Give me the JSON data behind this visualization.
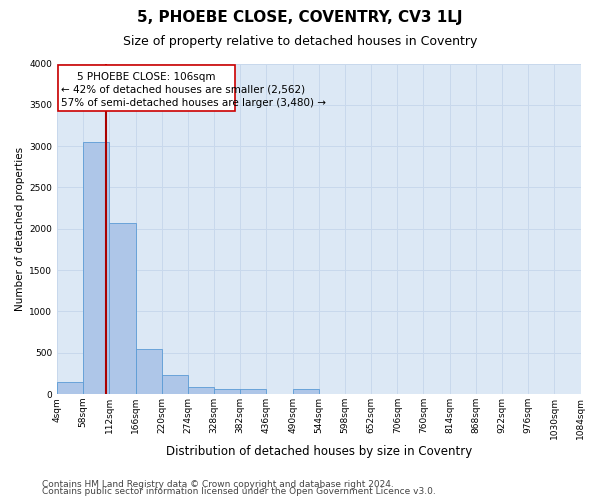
{
  "title1": "5, PHOEBE CLOSE, COVENTRY, CV3 1LJ",
  "title2": "Size of property relative to detached houses in Coventry",
  "xlabel": "Distribution of detached houses by size in Coventry",
  "ylabel": "Number of detached properties",
  "bar_edges": [
    4,
    58,
    112,
    166,
    220,
    274,
    328,
    382,
    436,
    490,
    544,
    598,
    652,
    706,
    760,
    814,
    868,
    922,
    976,
    1030,
    1084
  ],
  "bar_heights": [
    150,
    3050,
    2075,
    550,
    230,
    90,
    55,
    55,
    0,
    55,
    0,
    0,
    0,
    0,
    0,
    0,
    0,
    0,
    0,
    0
  ],
  "bar_color": "#aec6e8",
  "bar_edge_color": "#5b9bd5",
  "property_line_x": 106,
  "property_line_color": "#aa0000",
  "annotation_title": "5 PHOEBE CLOSE: 106sqm",
  "annotation_line1": "← 42% of detached houses are smaller (2,562)",
  "annotation_line2": "57% of semi-detached houses are larger (3,480) →",
  "annotation_box_color": "#cc0000",
  "ylim": [
    0,
    4000
  ],
  "yticks": [
    0,
    500,
    1000,
    1500,
    2000,
    2500,
    3000,
    3500,
    4000
  ],
  "grid_color": "#c8d8ec",
  "background_color": "#dce8f5",
  "footer1": "Contains HM Land Registry data © Crown copyright and database right 2024.",
  "footer2": "Contains public sector information licensed under the Open Government Licence v3.0.",
  "title1_fontsize": 11,
  "title2_fontsize": 9,
  "xlabel_fontsize": 8.5,
  "ylabel_fontsize": 7.5,
  "tick_fontsize": 6.5,
  "annotation_fontsize": 7.5,
  "footer_fontsize": 6.5
}
